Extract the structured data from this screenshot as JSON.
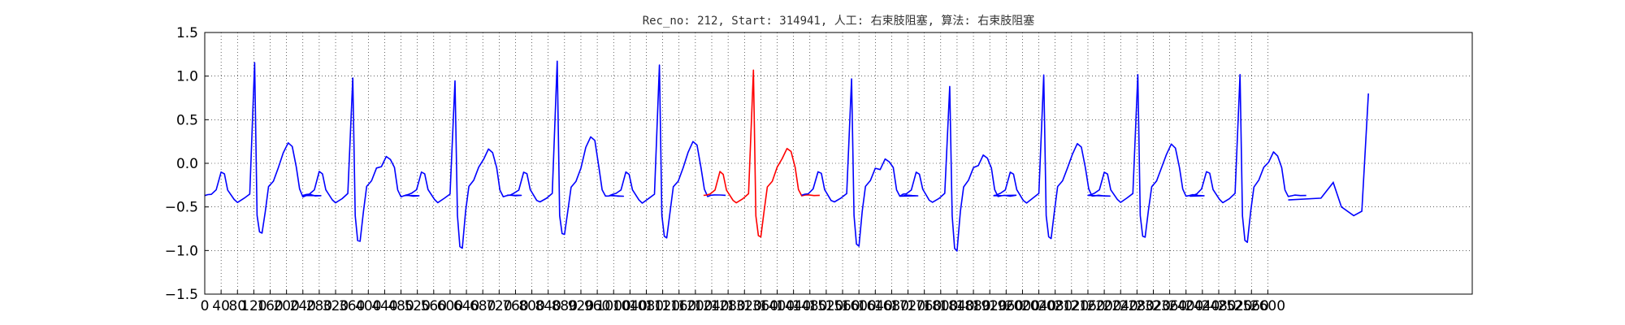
{
  "chart_data": {
    "type": "line",
    "title": "Rec_no: 212, Start: 314941, 人工: 右束肢阻塞, 算法: 右束肢阻塞",
    "xlabel": "",
    "ylabel": "",
    "xlim": [
      0,
      3100
    ],
    "ylim": [
      -1.5,
      1.5
    ],
    "grid": true,
    "x_ticks": [
      0,
      40,
      80,
      120,
      160,
      200,
      240,
      280,
      320,
      360,
      400,
      440,
      480,
      520,
      560,
      600,
      640,
      680,
      720,
      760,
      800,
      840,
      880,
      920,
      960,
      1000,
      1040,
      1080,
      1120,
      1160,
      1200,
      1240,
      1280,
      1320,
      1360,
      1400,
      1440,
      1480,
      1520,
      1560,
      1600,
      1640,
      1680,
      1720,
      1760,
      1800,
      1840,
      1880,
      1920,
      1960,
      2000,
      2040,
      2080,
      2120,
      2160,
      2200,
      2240,
      2280,
      2320,
      2360,
      2400,
      2440,
      2480,
      2520,
      2560,
      2600
    ],
    "y_ticks": [
      -1.5,
      -1.0,
      -0.5,
      0.0,
      0.5,
      1.0,
      1.5
    ],
    "y_tick_labels": [
      "−1.5",
      "−1.0",
      "−0.5",
      "0.0",
      "0.5",
      "1.0",
      "1.5"
    ],
    "beat_template": {
      "note": "",
      "x": [
        0,
        8,
        16,
        28,
        40,
        48,
        56,
        72,
        80,
        96,
        110,
        122,
        128,
        134,
        140,
        148,
        156,
        168,
        180,
        192,
        204,
        214,
        224,
        232,
        240,
        248,
        256,
        270,
        284
      ],
      "y": [
        -0.37,
        -0.36,
        -0.35,
        -0.3,
        -0.1,
        -0.12,
        -0.3,
        -0.42,
        -0.45,
        -0.4,
        -0.35,
        1.15,
        -0.6,
        -0.78,
        -0.8,
        -0.55,
        -0.27,
        -0.2,
        -0.05,
        0.1,
        0.22,
        0.18,
        -0.05,
        -0.3,
        -0.38,
        -0.37,
        -0.36,
        -0.37,
        -0.37
      ]
    },
    "series": [
      {
        "color": "#0000ff",
        "beats": [
          {
            "start": 0,
            "r": 1.15,
            "s": -0.8,
            "t": 0.24
          },
          {
            "start": 240,
            "r": 0.98,
            "s": -0.9,
            "t": 0.08
          },
          {
            "start": 490,
            "r": 0.95,
            "s": -0.97,
            "t": 0.16
          },
          {
            "start": 740,
            "r": 1.17,
            "s": -0.82,
            "t": 0.3
          },
          {
            "start": 990,
            "r": 1.13,
            "s": -0.85,
            "t": 0.25
          }
        ]
      },
      {
        "color": "#ff0000",
        "beats": [
          {
            "start": 1220,
            "r": 1.07,
            "s": -0.85,
            "t": 0.17
          }
        ]
      },
      {
        "color": "#0000ff",
        "beats": [
          {
            "start": 1460,
            "r": 0.97,
            "s": -0.95,
            "t": 0.05
          },
          {
            "start": 1700,
            "r": 0.88,
            "s": -1.0,
            "t": 0.1
          },
          {
            "start": 1930,
            "r": 1.02,
            "s": -0.86,
            "t": 0.22
          },
          {
            "start": 2160,
            "r": 1.02,
            "s": -0.85,
            "t": 0.22
          },
          {
            "start": 2410,
            "r": 1.02,
            "s": -0.9,
            "t": 0.13
          }
        ]
      }
    ],
    "tail": {
      "x": [
        2650,
        2730,
        2760,
        2780,
        2810,
        2830,
        2846
      ],
      "y": [
        -0.42,
        -0.4,
        -0.22,
        -0.5,
        -0.6,
        -0.55,
        0.8
      ],
      "color": "#0000ff"
    }
  }
}
